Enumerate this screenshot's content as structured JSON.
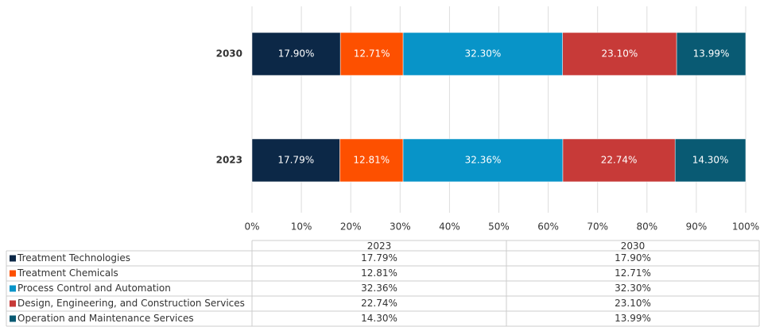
{
  "chart_data": {
    "type": "stacked_bar_horizontal",
    "categories": [
      "2023",
      "2030"
    ],
    "xlim": [
      0,
      100
    ],
    "xticks": [
      {
        "value": 0,
        "label": "0%"
      },
      {
        "value": 10,
        "label": "10%"
      },
      {
        "value": 20,
        "label": "20%"
      },
      {
        "value": 30,
        "label": "30%"
      },
      {
        "value": 40,
        "label": "40%"
      },
      {
        "value": 50,
        "label": "50%"
      },
      {
        "value": 60,
        "label": "60%"
      },
      {
        "value": 70,
        "label": "70%"
      },
      {
        "value": 80,
        "label": "80%"
      },
      {
        "value": 90,
        "label": "90%"
      },
      {
        "value": 100,
        "label": "100%"
      }
    ],
    "grid": true,
    "series": [
      {
        "name": "Treatment Technologies",
        "color": "#0c2847",
        "values": [
          17.79,
          17.9
        ],
        "value_labels": [
          "17.79%",
          "17.90%"
        ]
      },
      {
        "name": "Treatment Chemicals",
        "color": "#fd5000",
        "values": [
          12.81,
          12.71
        ],
        "value_labels": [
          "12.81%",
          "12.71%"
        ]
      },
      {
        "name": "Process Control and Automation",
        "color": "#0894c8",
        "values": [
          32.36,
          32.3
        ],
        "value_labels": [
          "32.36%",
          "32.30%"
        ]
      },
      {
        "name": "Design, Engineering, and Construction Services",
        "color": "#c73a38",
        "values": [
          22.74,
          23.1
        ],
        "value_labels": [
          "22.74%",
          "23.10%"
        ]
      },
      {
        "name": "Operation and Maintenance Services",
        "color": "#095a73",
        "values": [
          14.3,
          13.99
        ],
        "value_labels": [
          "14.30%",
          "13.99%"
        ]
      }
    ]
  }
}
